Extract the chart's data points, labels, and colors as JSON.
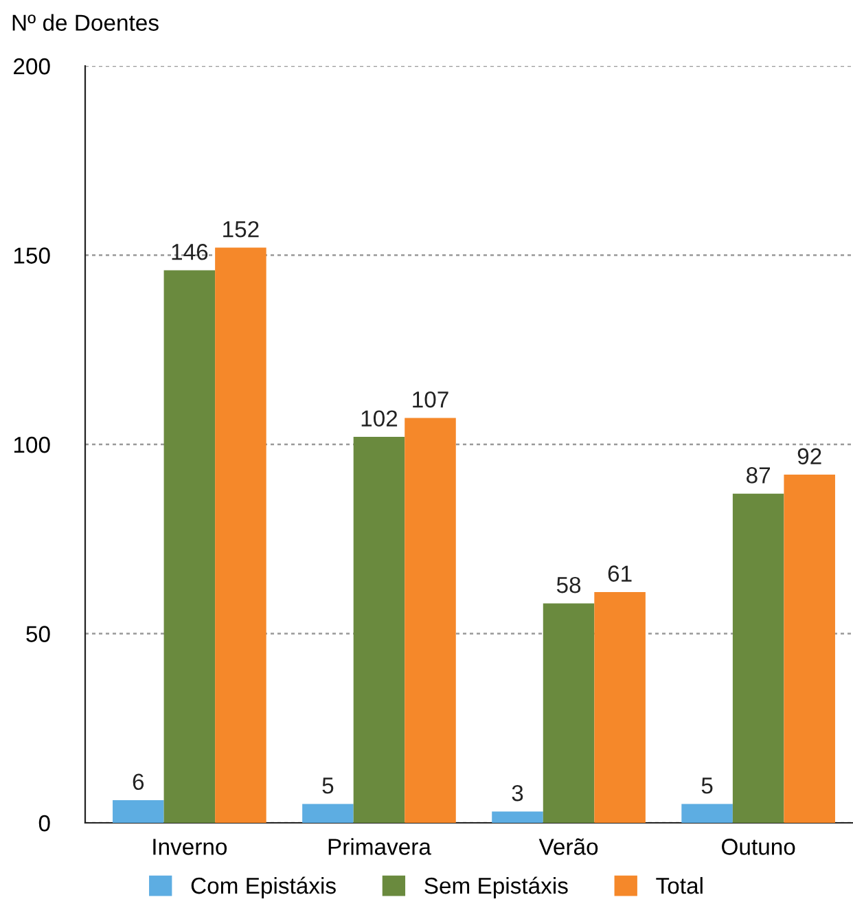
{
  "chart_data": {
    "type": "bar",
    "ylabel": "Nº de Doentes",
    "categories": [
      "Inverno",
      "Primavera",
      "Verão",
      "Outuno"
    ],
    "series": [
      {
        "name": "Com Epistáxis",
        "color": "#5dade2",
        "values": [
          6,
          5,
          3,
          5
        ]
      },
      {
        "name": "Sem Epistáxis",
        "color": "#6a8a3e",
        "values": [
          146,
          102,
          58,
          87
        ]
      },
      {
        "name": "Total",
        "color": "#f5882a",
        "values": [
          152,
          107,
          61,
          92
        ]
      }
    ],
    "ylim": [
      0,
      200
    ],
    "yticks": [
      0,
      50,
      100,
      150,
      200
    ],
    "grid": "y",
    "legend": "bottom",
    "data_labels": true
  }
}
